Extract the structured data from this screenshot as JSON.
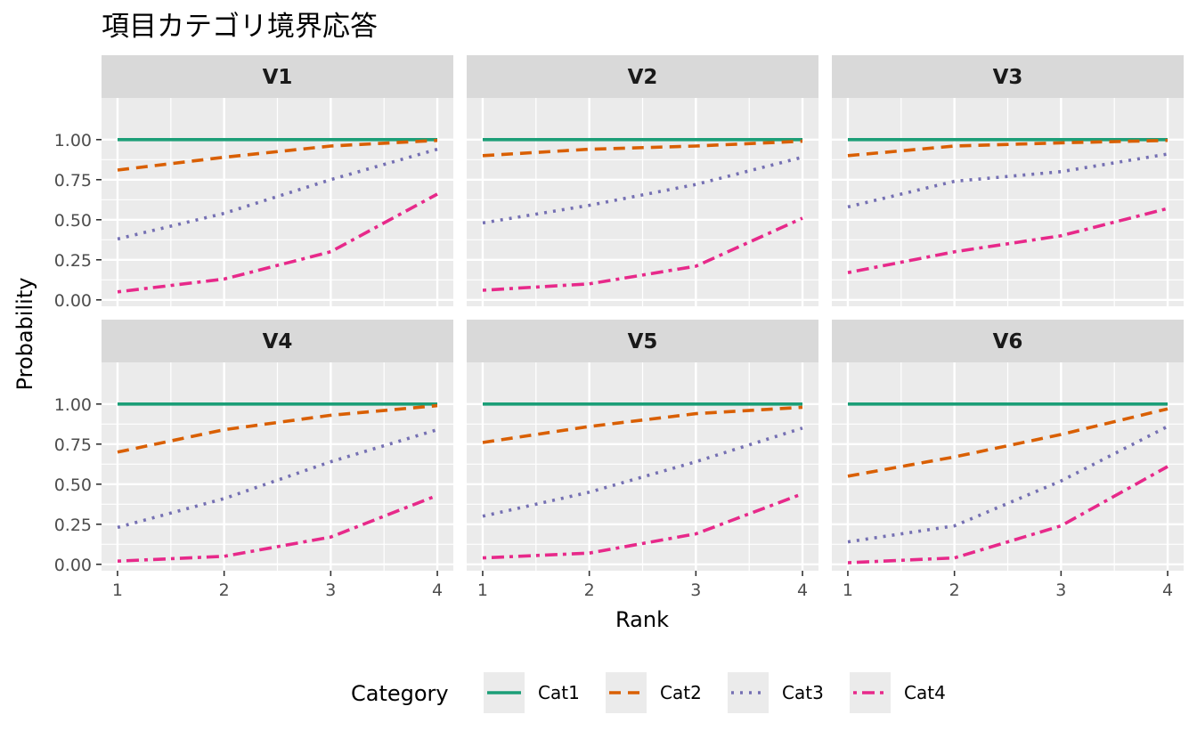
{
  "chart_data": {
    "type": "line",
    "title": "項目カテゴリ境界応答",
    "xlabel": "Rank",
    "ylabel": "Probability",
    "x": [
      1,
      2,
      3,
      4
    ],
    "xlim": [
      0.85,
      4.15
    ],
    "ylim": [
      -0.04,
      1.26
    ],
    "yticks": [
      0.0,
      0.25,
      0.5,
      0.75,
      1.0
    ],
    "ytick_labels": [
      "0.00",
      "0.25",
      "0.50",
      "0.75",
      "1.00"
    ],
    "xticks": [
      1,
      2,
      3,
      4
    ],
    "xtick_labels": [
      "1",
      "2",
      "3",
      "4"
    ],
    "grid": true,
    "legend_title": "Category",
    "legend_position": "bottom",
    "series_styles": [
      {
        "name": "Cat1",
        "color": "#1b9e77",
        "dash": "solid"
      },
      {
        "name": "Cat2",
        "color": "#d95f02",
        "dash": "dashed"
      },
      {
        "name": "Cat3",
        "color": "#7570b3",
        "dash": "dotted"
      },
      {
        "name": "Cat4",
        "color": "#e7298a",
        "dash": "dotdash"
      }
    ],
    "panels": [
      {
        "label": "V1",
        "series": [
          {
            "name": "Cat1",
            "values": [
              1.0,
              1.0,
              1.0,
              1.0
            ]
          },
          {
            "name": "Cat2",
            "values": [
              0.81,
              0.89,
              0.96,
              0.995
            ]
          },
          {
            "name": "Cat3",
            "values": [
              0.38,
              0.54,
              0.75,
              0.94
            ]
          },
          {
            "name": "Cat4",
            "values": [
              0.05,
              0.13,
              0.3,
              0.66
            ]
          }
        ]
      },
      {
        "label": "V2",
        "series": [
          {
            "name": "Cat1",
            "values": [
              1.0,
              1.0,
              1.0,
              1.0
            ]
          },
          {
            "name": "Cat2",
            "values": [
              0.9,
              0.94,
              0.96,
              0.99
            ]
          },
          {
            "name": "Cat3",
            "values": [
              0.48,
              0.59,
              0.72,
              0.89
            ]
          },
          {
            "name": "Cat4",
            "values": [
              0.06,
              0.1,
              0.21,
              0.51
            ]
          }
        ]
      },
      {
        "label": "V3",
        "series": [
          {
            "name": "Cat1",
            "values": [
              1.0,
              1.0,
              1.0,
              1.0
            ]
          },
          {
            "name": "Cat2",
            "values": [
              0.9,
              0.96,
              0.98,
              0.995
            ]
          },
          {
            "name": "Cat3",
            "values": [
              0.58,
              0.74,
              0.8,
              0.91
            ]
          },
          {
            "name": "Cat4",
            "values": [
              0.17,
              0.3,
              0.4,
              0.57
            ]
          }
        ]
      },
      {
        "label": "V4",
        "series": [
          {
            "name": "Cat1",
            "values": [
              1.0,
              1.0,
              1.0,
              1.0
            ]
          },
          {
            "name": "Cat2",
            "values": [
              0.7,
              0.84,
              0.93,
              0.99
            ]
          },
          {
            "name": "Cat3",
            "values": [
              0.23,
              0.41,
              0.64,
              0.84
            ]
          },
          {
            "name": "Cat4",
            "values": [
              0.02,
              0.05,
              0.17,
              0.43
            ]
          }
        ]
      },
      {
        "label": "V5",
        "series": [
          {
            "name": "Cat1",
            "values": [
              1.0,
              1.0,
              1.0,
              1.0
            ]
          },
          {
            "name": "Cat2",
            "values": [
              0.76,
              0.86,
              0.94,
              0.98
            ]
          },
          {
            "name": "Cat3",
            "values": [
              0.3,
              0.45,
              0.64,
              0.85
            ]
          },
          {
            "name": "Cat4",
            "values": [
              0.04,
              0.07,
              0.19,
              0.44
            ]
          }
        ]
      },
      {
        "label": "V6",
        "series": [
          {
            "name": "Cat1",
            "values": [
              1.0,
              1.0,
              1.0,
              1.0
            ]
          },
          {
            "name": "Cat2",
            "values": [
              0.55,
              0.67,
              0.81,
              0.97
            ]
          },
          {
            "name": "Cat3",
            "values": [
              0.14,
              0.24,
              0.52,
              0.86
            ]
          },
          {
            "name": "Cat4",
            "values": [
              0.01,
              0.04,
              0.24,
              0.61
            ]
          }
        ]
      }
    ]
  }
}
